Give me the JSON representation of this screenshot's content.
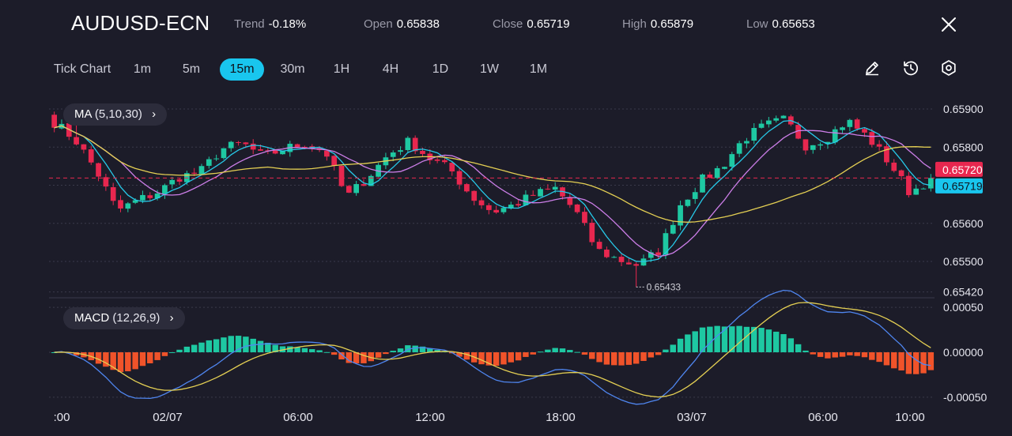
{
  "header": {
    "symbol": "AUDUSD-ECN",
    "stats": [
      {
        "label": "Trend",
        "value": "-0.18%"
      },
      {
        "label": "Open",
        "value": "0.65838"
      },
      {
        "label": "Close",
        "value": "0.65719"
      },
      {
        "label": "High",
        "value": "0.65879"
      },
      {
        "label": "Low",
        "value": "0.65653"
      }
    ]
  },
  "timeframes": [
    "Tick Chart",
    "1m",
    "5m",
    "15m",
    "30m",
    "1H",
    "4H",
    "1D",
    "1W",
    "1M"
  ],
  "active_timeframe": "15m",
  "tools": [
    "pencil-icon",
    "clock-reset-icon",
    "settings-icon"
  ],
  "indicators": {
    "ma": {
      "name": "MA",
      "params": "(5,10,30)"
    },
    "macd": {
      "name": "MACD",
      "params": "(12,26,9)"
    }
  },
  "colors": {
    "background": "#1c1c29",
    "bull": "#1ec8a2",
    "bear": "#e8274f",
    "ma5": "#27c9e8",
    "ma10": "#cc7ee8",
    "ma30": "#e4cf53",
    "hist_pos": "#1ec8a2",
    "hist_neg": "#f0532a",
    "macd_line": "#4f86f0",
    "signal_line": "#e4cf53",
    "close_tag": "#19c6ee",
    "bid_tag": "#e8274f"
  },
  "chart_data": [
    {
      "type": "candlestick",
      "title": "AUDUSD-ECN",
      "interval": "15m",
      "x_tick_labels": [
        ":00",
        "02/07",
        "06:00",
        "12:00",
        "18:00",
        "03/07",
        "06:00",
        "10:00"
      ],
      "y_ticks": [
        0.659,
        0.658,
        0.657,
        0.656,
        0.655,
        0.6542
      ],
      "y_tick_labels": [
        "0.65900",
        "0.65800",
        "0.65700",
        "0.65600",
        "0.65500",
        "0.65420"
      ],
      "ylim": [
        0.65415,
        0.65925
      ],
      "annotations": {
        "max": "0.65896",
        "min": "0.65433"
      },
      "min_value": 0.65433,
      "max_value": 0.65896,
      "current_price": 0.65719,
      "bid_price": 0.6572,
      "current_label": "0.65719",
      "bid_label": "0.65720",
      "ohlc_anchor_closes": [
        0.65865,
        0.6582,
        0.6574,
        0.65633,
        0.6566,
        0.65683,
        0.65722,
        0.65735,
        0.65795,
        0.6581,
        0.65775,
        0.65795,
        0.6581,
        0.65788,
        0.65668,
        0.6572,
        0.6578,
        0.65815,
        0.6577,
        0.6574,
        0.6567,
        0.6563,
        0.65648,
        0.65675,
        0.65692,
        0.6563,
        0.6553,
        0.65505,
        0.6549,
        0.6553,
        0.6565,
        0.65712,
        0.6575,
        0.6582,
        0.65855,
        0.65872,
        0.65805,
        0.65825,
        0.6587,
        0.65825,
        0.6576,
        0.6568,
        0.65719
      ],
      "series": [
        {
          "name": "MA",
          "period": 5
        },
        {
          "name": "MA",
          "period": 10
        },
        {
          "name": "MA",
          "period": 30
        }
      ]
    },
    {
      "type": "macd",
      "title": "MACD",
      "params": [
        12,
        26,
        9
      ],
      "y_ticks": [
        0.0005,
        0,
        -0.0005
      ],
      "y_tick_labels": [
        "0.00050",
        "0.00000",
        "-0.00050"
      ],
      "ylim": [
        -0.00058,
        0.00058
      ]
    }
  ]
}
